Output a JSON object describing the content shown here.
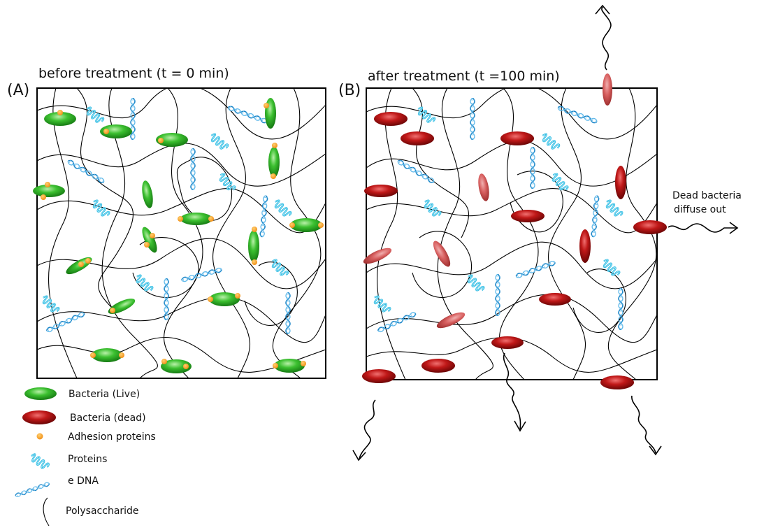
{
  "panel_a": {
    "label": "(A)",
    "title": "before treatment (t = 0 min)"
  },
  "panel_b": {
    "label": "(B)",
    "title": "after treatment (t =100 min)",
    "side_note_line1": "Dead bacteria",
    "side_note_line2": "diffuse out"
  },
  "legend": [
    {
      "icon": "live-bacteria-icon",
      "label": "Bacteria (Live)"
    },
    {
      "icon": "dead-bacteria-icon",
      "label": "Bacteria (dead)"
    },
    {
      "icon": "adhesion-protein-icon",
      "label": "Adhesion proteins"
    },
    {
      "icon": "protein-icon",
      "label": "Proteins"
    },
    {
      "icon": "edna-icon",
      "label": "e DNA"
    },
    {
      "icon": "polysaccharide-icon",
      "label": "Polysaccharide"
    }
  ],
  "colors": {
    "live_bacteria": "#22a81e",
    "dead_bacteria": "#b01010",
    "adhesion_protein": "#f5a020",
    "protein": "#2ab8e0",
    "edna": "#1e86c8",
    "polysaccharide": "#000000"
  }
}
